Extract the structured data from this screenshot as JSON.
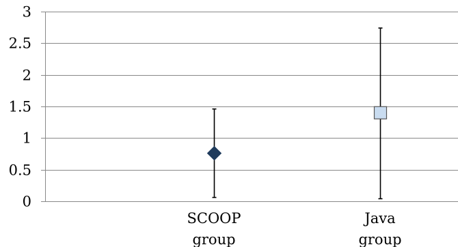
{
  "chart_data": {
    "type": "scatter",
    "title": "",
    "xlabel": "",
    "ylabel": "",
    "ylim": [
      0,
      3
    ],
    "yticks": [
      "0",
      "0.5",
      "1",
      "1.5",
      "2",
      "2.5",
      "3"
    ],
    "grid": true,
    "legend": "none",
    "categories": [
      [
        "SCOOP",
        "group"
      ],
      [
        "Java",
        "group"
      ]
    ],
    "points": [
      {
        "category": "SCOOP group",
        "value": 0.76,
        "error_low": 0.06,
        "error_high": 1.46,
        "marker": "diamond",
        "color": "#1f3b5c"
      },
      {
        "category": "Java group",
        "value": 1.4,
        "error_low": 0.04,
        "error_high": 2.74,
        "marker": "square",
        "color": "#c9dcf0"
      }
    ],
    "colors": {
      "grid": "#888888",
      "axis": "#888888",
      "errorbar": "#000000",
      "square_border": "#555555"
    }
  }
}
